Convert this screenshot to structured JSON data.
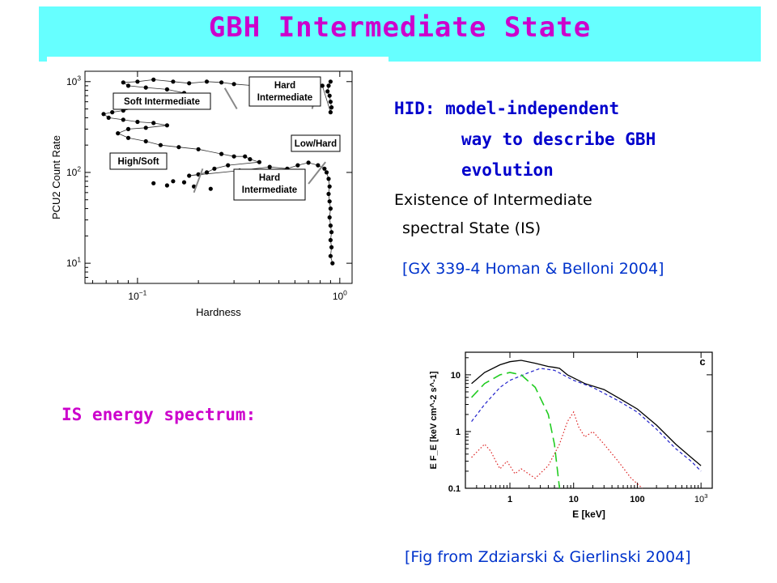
{
  "slide": {
    "title": "GBH Intermediate State",
    "colors": {
      "title_bg": "#66ffff",
      "title_text": "#cc00cc",
      "body_blue": "#0000cc",
      "ref_blue": "#0033cc",
      "magenta": "#cc00cc"
    }
  },
  "bullets": {
    "hid_line1": "HID: model-independent",
    "hid_line2": "way to describe GBH",
    "hid_line3": "evolution",
    "exist_line1": "Existence of Intermediate",
    "exist_line2": "spectral State (IS)",
    "ref_homan": "[GX 339-4 Homan & Belloni  2004]",
    "is_spectrum": "IS energy spectrum:",
    "ref_zdz": "[Fig from Zdziarski & Gierlinski  2004]"
  },
  "chart_data": [
    {
      "type": "scatter",
      "xlabel": "Hardness",
      "ylabel": "PCU2 Count Rate",
      "xscale": "log",
      "yscale": "log",
      "xlim": [
        0.055,
        1.15
      ],
      "ylim": [
        6,
        1300
      ],
      "xticks": [
        "10^-1",
        "10^0"
      ],
      "yticks": [
        "10^1",
        "10^2",
        "10^3"
      ],
      "state_labels": [
        "Soft Intermediate",
        "Hard Intermediate",
        "Low/Hard",
        "High/Soft",
        "Hard Intermediate"
      ],
      "series": [
        {
          "values": [
            [
              0.9,
              1000
            ],
            [
              0.88,
              900
            ],
            [
              0.87,
              780
            ],
            [
              0.89,
              700
            ],
            [
              0.9,
              600
            ],
            [
              0.91,
              520
            ],
            [
              0.9,
              460
            ],
            [
              0.82,
              900
            ],
            [
              0.78,
              850
            ],
            [
              0.72,
              820
            ],
            [
              0.62,
              800
            ],
            [
              0.55,
              820
            ],
            [
              0.45,
              860
            ],
            [
              0.38,
              900
            ],
            [
              0.3,
              940
            ],
            [
              0.26,
              980
            ],
            [
              0.22,
              1000
            ],
            [
              0.18,
              960
            ],
            [
              0.15,
              1000
            ],
            [
              0.12,
              1050
            ],
            [
              0.1,
              1000
            ],
            [
              0.085,
              980
            ],
            [
              0.09,
              900
            ],
            [
              0.11,
              860
            ],
            [
              0.14,
              820
            ],
            [
              0.17,
              750
            ],
            [
              0.2,
              700
            ],
            [
              0.18,
              640
            ],
            [
              0.15,
              600
            ],
            [
              0.12,
              560
            ],
            [
              0.1,
              520
            ],
            [
              0.085,
              480
            ],
            [
              0.075,
              460
            ],
            [
              0.068,
              440
            ],
            [
              0.072,
              400
            ],
            [
              0.085,
              380
            ],
            [
              0.1,
              360
            ],
            [
              0.12,
              350
            ],
            [
              0.14,
              330
            ],
            [
              0.11,
              310
            ],
            [
              0.09,
              300
            ],
            [
              0.08,
              270
            ],
            [
              0.09,
              240
            ],
            [
              0.11,
              220
            ],
            [
              0.13,
              200
            ],
            [
              0.16,
              190
            ],
            [
              0.2,
              180
            ],
            [
              0.26,
              160
            ],
            [
              0.3,
              150
            ],
            [
              0.34,
              150
            ],
            [
              0.36,
              140
            ],
            [
              0.4,
              130
            ],
            [
              0.28,
              120
            ],
            [
              0.24,
              110
            ],
            [
              0.22,
              100
            ],
            [
              0.2,
              95
            ],
            [
              0.18,
              92
            ],
            [
              0.32,
              105
            ],
            [
              0.45,
              115
            ],
            [
              0.55,
              110
            ],
            [
              0.62,
              120
            ],
            [
              0.7,
              128
            ],
            [
              0.78,
              120
            ],
            [
              0.84,
              110
            ],
            [
              0.86,
              100
            ],
            [
              0.88,
              85
            ],
            [
              0.89,
              70
            ],
            [
              0.88,
              58
            ],
            [
              0.89,
              48
            ],
            [
              0.9,
              40
            ],
            [
              0.89,
              32
            ],
            [
              0.9,
              26
            ],
            [
              0.91,
              22
            ],
            [
              0.9,
              18
            ],
            [
              0.91,
              15
            ],
            [
              0.9,
              12
            ],
            [
              0.92,
              10
            ],
            [
              0.15,
              80
            ],
            [
              0.17,
              78
            ],
            [
              0.12,
              76
            ],
            [
              0.14,
              72
            ],
            [
              0.19,
              70
            ],
            [
              0.23,
              66
            ]
          ]
        }
      ]
    },
    {
      "type": "line",
      "xlabel": "E [keV]",
      "ylabel": "E F_E [keV cm^-2 s^-1]",
      "xscale": "log",
      "yscale": "log",
      "xlim": [
        0.2,
        1500
      ],
      "ylim": [
        0.1,
        25
      ],
      "xticks": [
        "1",
        "10",
        "100",
        "10^3"
      ],
      "yticks": [
        "0.1",
        "1",
        "10"
      ],
      "panel_label": "c",
      "series": [
        {
          "style": "solid-black",
          "values": [
            [
              0.25,
              7
            ],
            [
              0.4,
              11
            ],
            [
              0.7,
              15
            ],
            [
              1.0,
              17
            ],
            [
              1.5,
              18
            ],
            [
              2.5,
              16
            ],
            [
              4,
              14
            ],
            [
              5,
              13.5
            ],
            [
              6,
              13
            ],
            [
              8,
              10
            ],
            [
              15,
              7
            ],
            [
              30,
              5.5
            ],
            [
              60,
              3.5
            ],
            [
              100,
              2.5
            ],
            [
              200,
              1.3
            ],
            [
              400,
              0.6
            ],
            [
              700,
              0.35
            ],
            [
              1000,
              0.25
            ]
          ]
        },
        {
          "style": "dash-blue",
          "values": [
            [
              0.25,
              1.5
            ],
            [
              0.4,
              3
            ],
            [
              0.7,
              6
            ],
            [
              1.0,
              8
            ],
            [
              2,
              11
            ],
            [
              3,
              13
            ],
            [
              5,
              12
            ],
            [
              10,
              8
            ],
            [
              20,
              6
            ],
            [
              50,
              3.5
            ],
            [
              100,
              2.2
            ],
            [
              200,
              1.1
            ],
            [
              400,
              0.5
            ],
            [
              700,
              0.3
            ],
            [
              1000,
              0.2
            ]
          ]
        },
        {
          "style": "long-dash-green",
          "values": [
            [
              0.25,
              4
            ],
            [
              0.4,
              7
            ],
            [
              0.7,
              10
            ],
            [
              1.0,
              11
            ],
            [
              1.5,
              10
            ],
            [
              2.5,
              6
            ],
            [
              4,
              2
            ],
            [
              5,
              0.6
            ],
            [
              6,
              0.1
            ]
          ]
        },
        {
          "style": "dot-red",
          "values": [
            [
              0.25,
              0.35
            ],
            [
              0.4,
              0.6
            ],
            [
              0.5,
              0.45
            ],
            [
              0.6,
              0.3
            ],
            [
              0.7,
              0.22
            ],
            [
              0.9,
              0.3
            ],
            [
              1.2,
              0.18
            ],
            [
              1.5,
              0.22
            ],
            [
              2.5,
              0.15
            ],
            [
              4,
              0.25
            ],
            [
              6,
              0.6
            ],
            [
              8,
              1.5
            ],
            [
              10,
              2.2
            ],
            [
              12,
              1.2
            ],
            [
              15,
              0.8
            ],
            [
              20,
              1.0
            ],
            [
              30,
              0.6
            ],
            [
              50,
              0.3
            ],
            [
              80,
              0.15
            ],
            [
              120,
              0.1
            ]
          ]
        }
      ]
    }
  ]
}
